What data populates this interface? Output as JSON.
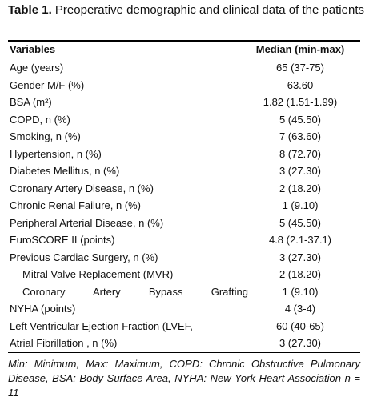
{
  "title": {
    "label": "Table 1.",
    "text": "Preoperative demographic and clinical data of the patients"
  },
  "table": {
    "header": [
      "Variables",
      "Median (min-max)"
    ],
    "rows": [
      [
        "Age (years)",
        "65 (37-75)"
      ],
      [
        "Gender M/F (%)",
        "63.60"
      ],
      [
        "BSA (m²)",
        "1.82 (1.51-1.99)"
      ],
      [
        "COPD, n (%)",
        "5 (45.50)"
      ],
      [
        "Smoking, n (%)",
        "7 (63.60)"
      ],
      [
        "Hypertension, n (%)",
        "8 (72.70)"
      ],
      [
        "Diabetes Mellitus, n (%)",
        "3 (27.30)"
      ],
      [
        "Coronary Artery Disease, n (%)",
        "2 (18.20)"
      ],
      [
        "Chronic Renal Failure, n (%)",
        "1 (9.10)"
      ],
      [
        "Peripheral Arterial Disease, n (%)",
        "5 (45.50)"
      ],
      [
        "EuroSCORE II (points)",
        "4.8 (2.1-37.1)"
      ],
      [
        "Previous Cardiac Surgery, n (%)",
        "3 (27.30)"
      ],
      [
        "Mitral Valve Replacement (MVR)",
        "2 (18.20)"
      ],
      [
        "Coronary Artery Bypass Grafting",
        "1 (9.10)"
      ],
      [
        "NYHA (points)",
        "4 (3-4)"
      ],
      [
        "Left Ventricular Ejection Fraction (LVEF,",
        "60 (40-65)"
      ],
      [
        "Atrial Fibrillation , n (%)",
        "3 (27.30)"
      ]
    ]
  },
  "footnote": "Min: Minimum, Max: Maximum, COPD: Chronic Obstructive Pulmonary Disease, BSA: Body Surface Area, NYHA: New York Heart Association n = 11"
}
